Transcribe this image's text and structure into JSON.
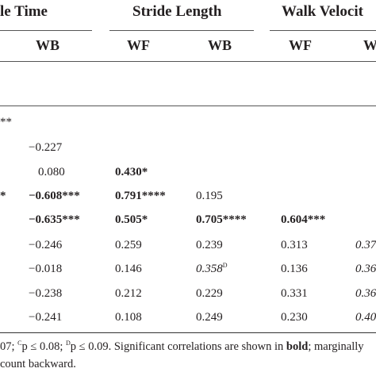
{
  "headers": {
    "group_a": "le Time",
    "group_b": "Stride Length",
    "group_c": "Walk Velocit"
  },
  "subheaders": {
    "a_wb": "WB",
    "b_wf": "WF",
    "b_wb": "WB",
    "c_wf": "WF",
    "c_w": "W"
  },
  "rows": [
    {
      "stub": "**",
      "a_wb": "",
      "b_wf": "",
      "b_wb": "",
      "c_wf": "",
      "c_wb": ""
    },
    {
      "stub": "",
      "a_wb": "−0.227",
      "b_wf": "",
      "b_wb": "",
      "c_wf": "",
      "c_wb": ""
    },
    {
      "stub": "",
      "a_wb": "0.080",
      "b_wf": "0.430*",
      "b_wb": "",
      "c_wf": "",
      "c_wb": ""
    },
    {
      "stub": "*",
      "a_wb": "−0.608***",
      "b_wf": "0.791****",
      "b_wb": "0.195",
      "c_wf": "",
      "c_wb": ""
    },
    {
      "stub": "",
      "a_wb": "−0.635***",
      "b_wf": "0.505*",
      "b_wb": "0.705****",
      "c_wf": "0.604***",
      "c_wb": ""
    },
    {
      "stub": "",
      "a_wb": "−0.246",
      "b_wf": "0.259",
      "b_wb": "0.239",
      "c_wf": "0.313",
      "c_wb": "0.37"
    },
    {
      "stub": "",
      "a_wb": "−0.018",
      "b_wf": "0.146",
      "b_wb": "0.358",
      "b_wb_sup": "D",
      "c_wf": "0.136",
      "c_wb": "0.36"
    },
    {
      "stub": "",
      "a_wb": "−0.238",
      "b_wf": "0.212",
      "b_wb": "0.229",
      "c_wf": "0.331",
      "c_wb": "0.36"
    },
    {
      "stub": "",
      "a_wb": "−0.241",
      "b_wf": "0.108",
      "b_wb": "0.249",
      "c_wf": "0.230",
      "c_wb": "0.40"
    }
  ],
  "footnote": {
    "part1": "07; ",
    "sup_c": "C",
    "part2": "p ≤ 0.08; ",
    "sup_d": "D",
    "part3": "p ≤ 0.09. Significant correlations are shown in ",
    "bold_word": "bold",
    "part4": "; marginally",
    "line2": "count backward."
  }
}
